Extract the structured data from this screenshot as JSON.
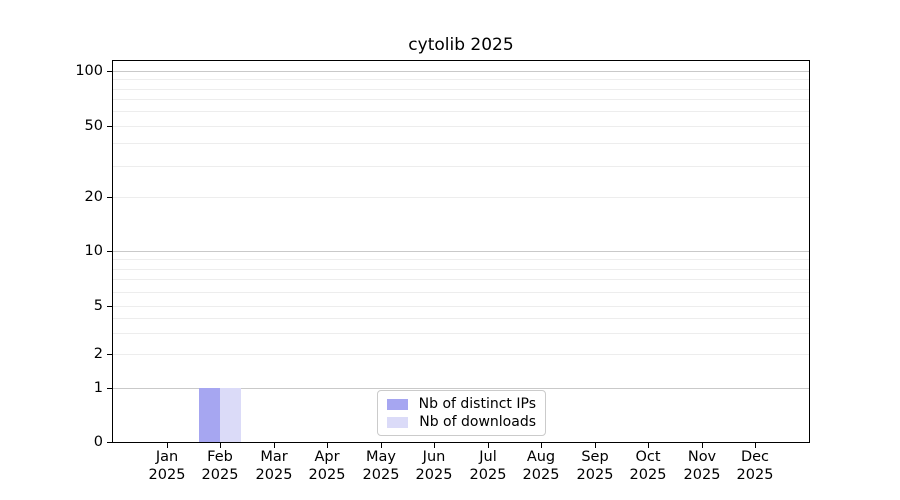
{
  "chart_data": {
    "type": "bar",
    "title": "cytolib 2025",
    "categories": [
      "Jan 2025",
      "Feb 2025",
      "Mar 2025",
      "Apr 2025",
      "May 2025",
      "Jun 2025",
      "Jul 2025",
      "Aug 2025",
      "Sep 2025",
      "Oct 2025",
      "Nov 2025",
      "Dec 2025"
    ],
    "series": [
      {
        "name": "Nb of distinct IPs",
        "color": "#a6a6f1",
        "values": [
          0,
          1,
          0,
          0,
          0,
          0,
          0,
          0,
          0,
          0,
          0,
          0
        ]
      },
      {
        "name": "Nb of downloads",
        "color": "#dbdbf8",
        "values": [
          0,
          1,
          0,
          0,
          0,
          0,
          0,
          0,
          0,
          0,
          0,
          0
        ]
      }
    ],
    "xlabel": "",
    "ylabel": "",
    "y_axis": {
      "scale": "symlog",
      "tick_values": [
        0,
        1,
        2,
        5,
        10,
        20,
        50,
        100
      ],
      "tick_fractions_from_top": [
        1.0,
        0.859,
        0.77,
        0.643,
        0.499,
        0.358,
        0.17,
        0.026
      ],
      "decade_gridline_values": [
        1,
        10,
        100
      ],
      "light_gridline_values": [
        2,
        3,
        4,
        5,
        6,
        7,
        8,
        9,
        20,
        30,
        40,
        50,
        60,
        70,
        80,
        90
      ],
      "ylim_labels": [
        0,
        100
      ]
    },
    "legend": {
      "entries": [
        "Nb of distinct IPs",
        "Nb of downloads"
      ],
      "position": "lower-center"
    },
    "grid": true
  },
  "colors": {
    "bar_distinct_ips": "#a6a6f1",
    "bar_downloads": "#dbdbf8",
    "grid_major": "#c9c9c9",
    "grid_minor": "#ededed",
    "axis": "#000000",
    "legend_border": "#cbcbcb",
    "background": "#ffffff"
  }
}
